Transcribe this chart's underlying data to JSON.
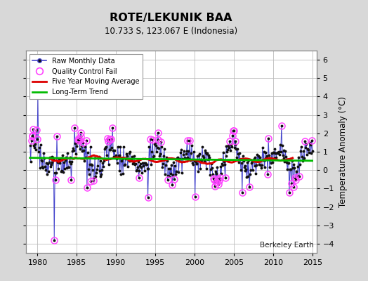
{
  "title": "ROTE/LEKUNIK BAA",
  "subtitle": "10.733 S, 123.067 E (Indonesia)",
  "ylabel": "Temperature Anomaly (°C)",
  "watermark": "Berkeley Earth",
  "xlim": [
    1978.5,
    2015.5
  ],
  "ylim": [
    -4.5,
    6.5
  ],
  "yticks": [
    -4,
    -3,
    -2,
    -1,
    0,
    1,
    2,
    3,
    4,
    5,
    6
  ],
  "xticks": [
    1980,
    1985,
    1990,
    1995,
    2000,
    2005,
    2010,
    2015
  ],
  "bg_color": "#d8d8d8",
  "plot_bg_color": "#ffffff",
  "grid_color": "#bbbbbb",
  "raw_line_color": "#4444cc",
  "raw_dot_color": "#111111",
  "qc_fail_color": "#ff44ff",
  "moving_avg_color": "#dd0000",
  "trend_color": "#00bb00",
  "trend_intercept": 0.52,
  "trend_slope": 0.0015
}
